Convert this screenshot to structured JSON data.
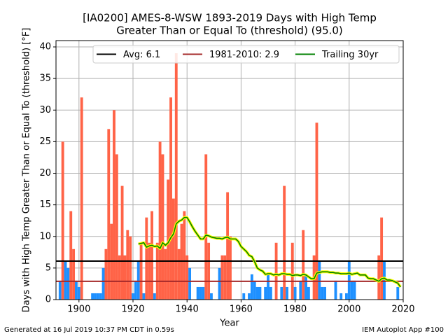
{
  "chart_data": {
    "type": "bar",
    "title": "[IA0200] AMES-8-WSW 1893-2019 Days with High Temp",
    "subtitle": "Greater Than or Equal To (threshold) (95.0)",
    "xlabel": "Year",
    "ylabel": "Days with High Temp Greater Than or Equal To (threshold) [°F]",
    "x": [
      1893,
      1894,
      1895,
      1896,
      1897,
      1898,
      1899,
      1900,
      1901,
      1902,
      1903,
      1904,
      1905,
      1906,
      1907,
      1908,
      1909,
      1910,
      1911,
      1912,
      1913,
      1914,
      1915,
      1916,
      1917,
      1918,
      1919,
      1920,
      1921,
      1922,
      1923,
      1924,
      1925,
      1926,
      1927,
      1928,
      1929,
      1930,
      1931,
      1932,
      1933,
      1934,
      1935,
      1936,
      1937,
      1938,
      1939,
      1940,
      1941,
      1942,
      1943,
      1944,
      1945,
      1946,
      1947,
      1948,
      1949,
      1950,
      1951,
      1952,
      1953,
      1954,
      1955,
      1956,
      1957,
      1958,
      1959,
      1960,
      1961,
      1962,
      1963,
      1964,
      1965,
      1966,
      1967,
      1968,
      1969,
      1970,
      1971,
      1972,
      1973,
      1974,
      1975,
      1976,
      1977,
      1978,
      1979,
      1980,
      1981,
      1982,
      1983,
      1984,
      1985,
      1986,
      1987,
      1988,
      1989,
      1990,
      1991,
      1992,
      1993,
      1994,
      1995,
      1996,
      1997,
      1998,
      1999,
      2000,
      2001,
      2002,
      2003,
      2004,
      2005,
      2006,
      2007,
      2008,
      2009,
      2010,
      2011,
      2012,
      2013,
      2014,
      2015,
      2016,
      2017,
      2018,
      2019
    ],
    "values": [
      3,
      25,
      6,
      5,
      14,
      8,
      3,
      2,
      32,
      0,
      0,
      0,
      1,
      1,
      1,
      1,
      5,
      8,
      27,
      12,
      30,
      23,
      7,
      18,
      7,
      11,
      10,
      1,
      3,
      6,
      9,
      1,
      13,
      9,
      14,
      1,
      9,
      25,
      23,
      8,
      19,
      32,
      16,
      39,
      8,
      12,
      14,
      7,
      5,
      0,
      0,
      2,
      2,
      2,
      23,
      9,
      1,
      0,
      0,
      5,
      7,
      7,
      17,
      10,
      0,
      0,
      0,
      0,
      1,
      0,
      1,
      4,
      3,
      2,
      2,
      0,
      2,
      4,
      2,
      0,
      9,
      0,
      2,
      18,
      2,
      0,
      9,
      2,
      0,
      3,
      11,
      4,
      2,
      0,
      7,
      28,
      6,
      2,
      2,
      0,
      0,
      0,
      3,
      0,
      1,
      0,
      1,
      6,
      3,
      3,
      0,
      0,
      0,
      0,
      0,
      0,
      0,
      0,
      7,
      13,
      6,
      0,
      0,
      0,
      0,
      2,
      0
    ],
    "above_color": "#ff6347",
    "below_color": "#1e90ff",
    "reference_lines": [
      {
        "name": "Avg: 6.1",
        "value": 6.1,
        "color": "#000000"
      },
      {
        "name": "1981-2010: 2.9",
        "value": 2.9,
        "color": "#a52a2a"
      }
    ],
    "trailing": {
      "name": "Trailing 30yr",
      "color": "#008000",
      "halo": "#ffff00",
      "x": [
        1922,
        1923,
        1924,
        1925,
        1926,
        1927,
        1928,
        1929,
        1930,
        1931,
        1932,
        1933,
        1934,
        1935,
        1936,
        1937,
        1938,
        1939,
        1940,
        1941,
        1942,
        1943,
        1944,
        1945,
        1946,
        1947,
        1948,
        1949,
        1950,
        1951,
        1952,
        1953,
        1954,
        1955,
        1956,
        1957,
        1958,
        1959,
        1960,
        1961,
        1962,
        1963,
        1964,
        1965,
        1966,
        1967,
        1968,
        1969,
        1970,
        1971,
        1972,
        1973,
        1974,
        1975,
        1976,
        1977,
        1978,
        1979,
        1980,
        1981,
        1982,
        1983,
        1984,
        1985,
        1986,
        1987,
        1988,
        1989,
        1990,
        1991,
        1992,
        1993,
        1994,
        1995,
        1996,
        1997,
        1998,
        1999,
        2000,
        2001,
        2002,
        2003,
        2004,
        2005,
        2006,
        2007,
        2008,
        2009,
        2010,
        2011,
        2012,
        2013,
        2014,
        2015,
        2016,
        2017,
        2018,
        2019
      ],
      "values": [
        8.8,
        8.9,
        9.0,
        8.3,
        8.5,
        8.6,
        8.4,
        8.5,
        8.1,
        9.0,
        8.6,
        9.0,
        9.8,
        10.4,
        12.0,
        12.4,
        12.6,
        13.0,
        13.0,
        12.3,
        11.5,
        10.8,
        10.2,
        9.6,
        9.6,
        10.2,
        10.1,
        9.9,
        9.8,
        9.7,
        9.7,
        9.6,
        9.8,
        9.9,
        9.6,
        9.6,
        9.6,
        9.2,
        8.4,
        8.0,
        7.6,
        7.0,
        6.8,
        6.0,
        5.0,
        4.7,
        4.5,
        4.0,
        4.1,
        4.1,
        3.9,
        4.0,
        3.9,
        4.1,
        4.1,
        4.0,
        4.0,
        3.8,
        3.9,
        3.9,
        3.8,
        4.0,
        3.9,
        3.6,
        3.3,
        3.3,
        4.2,
        4.3,
        4.4,
        4.4,
        4.4,
        4.3,
        4.3,
        4.2,
        4.2,
        4.1,
        4.1,
        4.1,
        4.2,
        4.0,
        4.1,
        4.2,
        3.9,
        3.9,
        3.9,
        3.4,
        3.3,
        3.3,
        3.1,
        2.9,
        3.3,
        3.4,
        3.1,
        3.1,
        3.0,
        2.8,
        2.6,
        2.0
      ]
    },
    "xlim": [
      1891.5,
      2020
    ],
    "ylim": [
      0,
      41
    ],
    "xticks": [
      1900,
      1920,
      1940,
      1960,
      1980,
      2000,
      2020
    ],
    "yticks": [
      0,
      5,
      10,
      15,
      20,
      25,
      30,
      35,
      40
    ],
    "grid": true,
    "legend": "top",
    "footer_left": "Generated at 16 Jul 2019 10:37 PM CDT in 0.59s",
    "footer_right": "IEM Autoplot App #100"
  }
}
